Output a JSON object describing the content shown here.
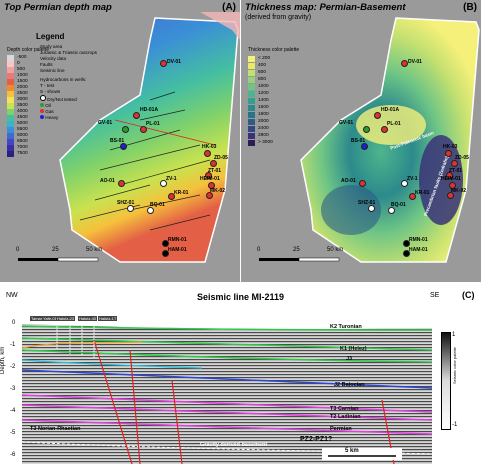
{
  "panel_a": {
    "title": "Top Permian depth map",
    "letter": "(A)",
    "legend_title": "Legend",
    "palette_title": "Depth color palette",
    "palette": [
      {
        "label": "-500",
        "color": "#d9d9d9"
      },
      {
        "label": "0",
        "color": "#f7c6c6"
      },
      {
        "label": "500",
        "color": "#f2a0a0"
      },
      {
        "label": "1000",
        "color": "#e87a7a"
      },
      {
        "label": "1500",
        "color": "#e35f45"
      },
      {
        "label": "2000",
        "color": "#f08a2a"
      },
      {
        "label": "2500",
        "color": "#f5c13c"
      },
      {
        "label": "3000",
        "color": "#f4e25b"
      },
      {
        "label": "3500",
        "color": "#c9e24f"
      },
      {
        "label": "4000",
        "color": "#7fd16b"
      },
      {
        "label": "4500",
        "color": "#45bfa0"
      },
      {
        "label": "5000",
        "color": "#39b3c9"
      },
      {
        "label": "5500",
        "color": "#3b8fd6"
      },
      {
        "label": "6000",
        "color": "#3f6ad0"
      },
      {
        "label": "6500",
        "color": "#4446c2"
      },
      {
        "label": "7000",
        "color": "#3a2ea5"
      },
      {
        "label": "7500",
        "color": "#2a2080"
      }
    ],
    "legend_items": [
      "Study area",
      "Jurassic & Triassic outcrops",
      "Velocity data",
      "Faults",
      "Seismic line"
    ],
    "hydrocarbons_title": "Hydrocarbons in wells:",
    "hc_items": [
      {
        "label": "- test",
        "symbol": "T"
      },
      {
        "label": "- shows",
        "symbol": "S"
      },
      {
        "label": "Dry/Not tested",
        "color": "#ffffff"
      },
      {
        "label": "Oil",
        "color": "#2e9d2e"
      },
      {
        "label": "Gas",
        "color": "#e03030"
      },
      {
        "label": "Heavy",
        "color": "#1f1fd0"
      }
    ],
    "wells": [
      "DV-01",
      "HD-01A",
      "GV-01",
      "PL-01",
      "BS-01",
      "HK-03",
      "ZD-05",
      "ZT-01",
      "HEIM-01",
      "MK-02",
      "AO-01",
      "ZV-1",
      "KR-01",
      "SHZ-01",
      "BQ-01",
      "RMN-01",
      "HAM-01"
    ],
    "scale_labels": [
      "0",
      "25",
      "50 km"
    ]
  },
  "panel_b": {
    "title": "Thickness map: Permian-Basement",
    "subtitle": "(derived from gravity)",
    "letter": "(B)",
    "palette_title": "Thickness color palette",
    "palette": [
      {
        "label": "< 200",
        "color": "#f5f07a"
      },
      {
        "label": "400",
        "color": "#e6ec6a"
      },
      {
        "label": "600",
        "color": "#c3e070"
      },
      {
        "label": "800",
        "color": "#95d27a"
      },
      {
        "label": "1000",
        "color": "#6ec585"
      },
      {
        "label": "1200",
        "color": "#4db58c"
      },
      {
        "label": "1400",
        "color": "#33a08f"
      },
      {
        "label": "1600",
        "color": "#2c8a8c"
      },
      {
        "label": "1800",
        "color": "#2b7487"
      },
      {
        "label": "2000",
        "color": "#2f5e85"
      },
      {
        "label": "2400",
        "color": "#334883"
      },
      {
        "label": "2800",
        "color": "#3a3278"
      },
      {
        "label": "> 3000",
        "color": "#2e1c5a"
      }
    ],
    "annotations": [
      "Post-Paleozoic basin",
      "Precambrian faults (Zedrafm)"
    ],
    "wells": [
      "DV-01",
      "HD-01A",
      "GV-01",
      "PL-01",
      "BS-01",
      "HK-03",
      "ZD-05",
      "ZT-01",
      "HEIM-01",
      "MK-02",
      "AO-01",
      "ZV-1",
      "KR-01",
      "SHZ-01",
      "BQ-01",
      "RMN-01",
      "HAM-01"
    ],
    "scale_labels": [
      "0",
      "25",
      "50 km"
    ]
  },
  "panel_c": {
    "title": "Seismic line MI-2119",
    "letter": "(C)",
    "left_label": "NW",
    "right_label": "SE",
    "ylabel": "Depth, km",
    "yticks": [
      "0",
      "-1",
      "-2",
      "-3",
      "-4",
      "-5",
      "-6"
    ],
    "well_tags": [
      "Tamar Yafe-01",
      "Halutz-23",
      "Halutz-40",
      "Halutz-1T"
    ],
    "horizons": [
      {
        "label": "K2 Turonian",
        "color": "#2ec94a"
      },
      {
        "label": "K1 (Helez)",
        "color": "#2ec94a"
      },
      {
        "label": "J3",
        "color": "#2ec94a"
      },
      {
        "label": "J2 Bajocian",
        "color": "#2a48d8"
      },
      {
        "label": "T3 Carnian",
        "color": "#e040e0"
      },
      {
        "label": "T2 Ladinian",
        "color": "#e040e0"
      },
      {
        "label": "Permian",
        "color": "#e040e0"
      },
      {
        "label": "T3 Norian-Rhaetian",
        "color": "#e040e0"
      }
    ],
    "basement_label": "Gravity derived basement",
    "pz_label": "PZ2-PZ1?",
    "scale_label": "5 km",
    "colorbar_label": "Seismic color palette",
    "colorbar_top": "1",
    "colorbar_bottom": "-1"
  }
}
